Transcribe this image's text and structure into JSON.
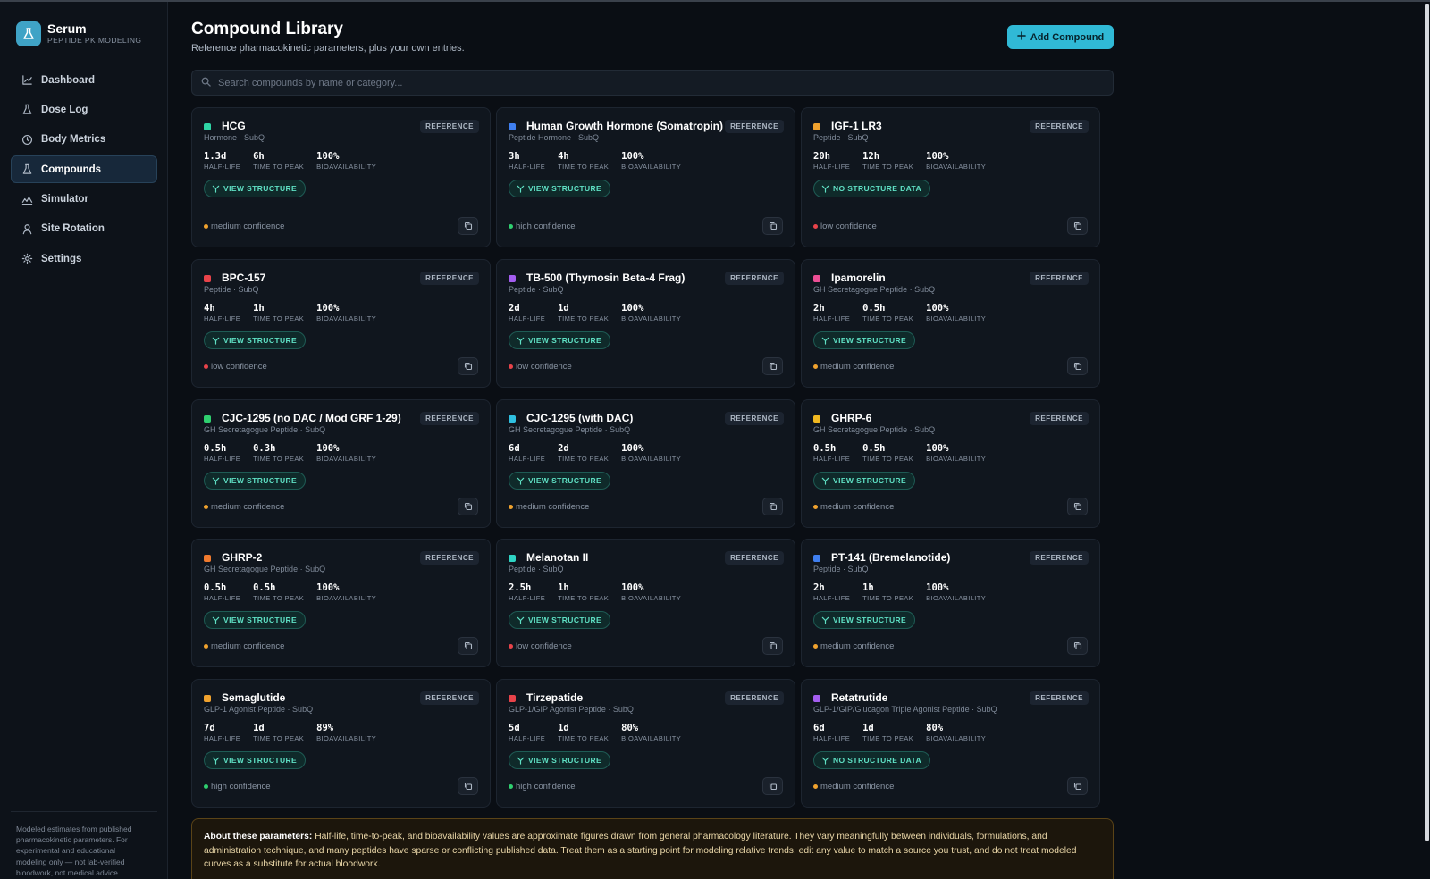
{
  "brand": {
    "name": "Serum",
    "subtitle": "PEPTIDE PK MODELING"
  },
  "nav": [
    {
      "label": "Dashboard",
      "icon": "chart-line-icon",
      "active": false
    },
    {
      "label": "Dose Log",
      "icon": "flask-icon",
      "active": false
    },
    {
      "label": "Body Metrics",
      "icon": "clock-icon",
      "active": false
    },
    {
      "label": "Compounds",
      "icon": "flask-icon",
      "active": true
    },
    {
      "label": "Simulator",
      "icon": "waveform-icon",
      "active": false
    },
    {
      "label": "Site Rotation",
      "icon": "user-icon",
      "active": false
    },
    {
      "label": "Settings",
      "icon": "gear-icon",
      "active": false
    }
  ],
  "sidebar_note": "Modeled estimates from published pharmacokinetic parameters. For experimental and educational modeling only — not lab-verified bloodwork, not medical advice.",
  "header": {
    "title": "Compound Library",
    "subtitle": "Reference pharmacokinetic parameters, plus your own entries.",
    "add_button": "Add Compound"
  },
  "search": {
    "placeholder": "Search compounds by name or category..."
  },
  "labels": {
    "half_life": "HALF-LIFE",
    "time_to_peak": "TIME TO PEAK",
    "bioavailability": "BIOAVAILABILITY",
    "reference": "REFERENCE"
  },
  "compounds": [
    {
      "name": "HCG",
      "category": "Hormone · SubQ",
      "half_life": "1.3d",
      "time_to_peak": "6h",
      "bioavailability": "100%",
      "structure": "VIEW STRUCTURE",
      "confidence": "medium confidence",
      "color": "#2fd4a5",
      "conf_color": "#f0a22e"
    },
    {
      "name": "Human Growth Hormone (Somatropin)",
      "category": "Peptide Hormone · SubQ",
      "half_life": "3h",
      "time_to_peak": "4h",
      "bioavailability": "100%",
      "structure": "VIEW STRUCTURE",
      "confidence": "high confidence",
      "color": "#3f7ff0",
      "conf_color": "#2fcf6f"
    },
    {
      "name": "IGF-1 LR3",
      "category": "Peptide · SubQ",
      "half_life": "20h",
      "time_to_peak": "12h",
      "bioavailability": "100%",
      "structure": "NO STRUCTURE DATA",
      "confidence": "low confidence",
      "color": "#f0a22e",
      "conf_color": "#e8434a"
    },
    {
      "name": "BPC-157",
      "category": "Peptide · SubQ",
      "half_life": "4h",
      "time_to_peak": "1h",
      "bioavailability": "100%",
      "structure": "VIEW STRUCTURE",
      "confidence": "low confidence",
      "color": "#e8434a",
      "conf_color": "#e8434a"
    },
    {
      "name": "TB-500 (Thymosin Beta-4 Frag)",
      "category": "Peptide · SubQ",
      "half_life": "2d",
      "time_to_peak": "1d",
      "bioavailability": "100%",
      "structure": "VIEW STRUCTURE",
      "confidence": "low confidence",
      "color": "#a45ef0",
      "conf_color": "#e8434a"
    },
    {
      "name": "Ipamorelin",
      "category": "GH Secretagogue Peptide · SubQ",
      "half_life": "2h",
      "time_to_peak": "0.5h",
      "bioavailability": "100%",
      "structure": "VIEW STRUCTURE",
      "confidence": "medium confidence",
      "color": "#ec4f95",
      "conf_color": "#f0a22e"
    },
    {
      "name": "CJC-1295 (no DAC / Mod GRF 1-29)",
      "category": "GH Secretagogue Peptide · SubQ",
      "half_life": "0.5h",
      "time_to_peak": "0.3h",
      "bioavailability": "100%",
      "structure": "VIEW STRUCTURE",
      "confidence": "medium confidence",
      "color": "#2fcf6f",
      "conf_color": "#f0a22e"
    },
    {
      "name": "CJC-1295 (with DAC)",
      "category": "GH Secretagogue Peptide · SubQ",
      "half_life": "6d",
      "time_to_peak": "2d",
      "bioavailability": "100%",
      "structure": "VIEW STRUCTURE",
      "confidence": "medium confidence",
      "color": "#2fc0e0",
      "conf_color": "#f0a22e"
    },
    {
      "name": "GHRP-6",
      "category": "GH Secretagogue Peptide · SubQ",
      "half_life": "0.5h",
      "time_to_peak": "0.5h",
      "bioavailability": "100%",
      "structure": "VIEW STRUCTURE",
      "confidence": "medium confidence",
      "color": "#f0b820",
      "conf_color": "#f0a22e"
    },
    {
      "name": "GHRP-2",
      "category": "GH Secretagogue Peptide · SubQ",
      "half_life": "0.5h",
      "time_to_peak": "0.5h",
      "bioavailability": "100%",
      "structure": "VIEW STRUCTURE",
      "confidence": "medium confidence",
      "color": "#f07a2e",
      "conf_color": "#f0a22e"
    },
    {
      "name": "Melanotan II",
      "category": "Peptide · SubQ",
      "half_life": "2.5h",
      "time_to_peak": "1h",
      "bioavailability": "100%",
      "structure": "VIEW STRUCTURE",
      "confidence": "low confidence",
      "color": "#2fd4c4",
      "conf_color": "#e8434a"
    },
    {
      "name": "PT-141 (Bremelanotide)",
      "category": "Peptide · SubQ",
      "half_life": "2h",
      "time_to_peak": "1h",
      "bioavailability": "100%",
      "structure": "VIEW STRUCTURE",
      "confidence": "medium confidence",
      "color": "#3f7ff0",
      "conf_color": "#f0a22e"
    },
    {
      "name": "Semaglutide",
      "category": "GLP-1 Agonist Peptide · SubQ",
      "half_life": "7d",
      "time_to_peak": "1d",
      "bioavailability": "89%",
      "structure": "VIEW STRUCTURE",
      "confidence": "high confidence",
      "color": "#f0a22e",
      "conf_color": "#2fcf6f"
    },
    {
      "name": "Tirzepatide",
      "category": "GLP-1/GIP Agonist Peptide · SubQ",
      "half_life": "5d",
      "time_to_peak": "1d",
      "bioavailability": "80%",
      "structure": "VIEW STRUCTURE",
      "confidence": "high confidence",
      "color": "#e8434a",
      "conf_color": "#2fcf6f"
    },
    {
      "name": "Retatrutide",
      "category": "GLP-1/GIP/Glucagon Triple Agonist Peptide · SubQ",
      "half_life": "6d",
      "time_to_peak": "1d",
      "bioavailability": "80%",
      "structure": "NO STRUCTURE DATA",
      "confidence": "medium confidence",
      "color": "#a45ef0",
      "conf_color": "#f0a22e"
    }
  ],
  "notice": {
    "heading": "About these parameters:",
    "body": "Half-life, time-to-peak, and bioavailability values are approximate figures drawn from general pharmacology literature. They vary meaningfully between individuals, formulations, and administration technique, and many peptides have sparse or conflicting published data. Treat them as a starting point for modeling relative trends, edit any value to match a source you trust, and do not treat modeled curves as a substitute for actual bloodwork."
  }
}
